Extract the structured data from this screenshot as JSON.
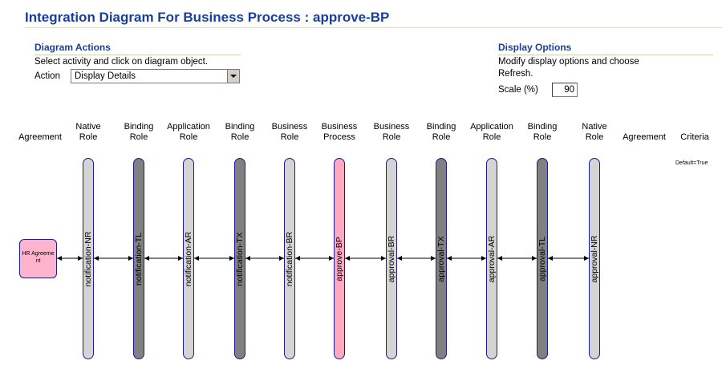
{
  "page": {
    "title": "Integration Diagram For Business Process : approve-BP"
  },
  "diagram_actions": {
    "heading": "Diagram Actions",
    "hint": "Select activity and click on diagram object.",
    "action_label": "Action",
    "action_value": "Display Details"
  },
  "display_options": {
    "heading": "Display Options",
    "hint_line1": "Modify display options and choose",
    "hint_line2": "Refresh.",
    "scale_label": "Scale (%)",
    "scale_value": "90"
  },
  "columns": [
    {
      "line1": "",
      "line2": "Agreement"
    },
    {
      "line1": "Native",
      "line2": "Role"
    },
    {
      "line1": "Binding",
      "line2": "Role"
    },
    {
      "line1": "Application",
      "line2": "Role"
    },
    {
      "line1": "Binding",
      "line2": "Role"
    },
    {
      "line1": "Business",
      "line2": "Role"
    },
    {
      "line1": "Business",
      "line2": "Process"
    },
    {
      "line1": "Business",
      "line2": "Role"
    },
    {
      "line1": "Binding",
      "line2": "Role"
    },
    {
      "line1": "Application",
      "line2": "Role"
    },
    {
      "line1": "Binding",
      "line2": "Role"
    },
    {
      "line1": "Native",
      "line2": "Role"
    },
    {
      "line1": "",
      "line2": "Agreement"
    },
    {
      "line1": "",
      "line2": "Criteria"
    }
  ],
  "agreement_node": {
    "line1": "HR Agreeme",
    "line2": "nt"
  },
  "criteria_value": "Default=True",
  "bars": [
    {
      "label": "notification-NR",
      "style": "light"
    },
    {
      "label": "notification-TL",
      "style": "dark"
    },
    {
      "label": "notification-AR",
      "style": "light"
    },
    {
      "label": "notification-TX",
      "style": "dark"
    },
    {
      "label": "notification-BR",
      "style": "light"
    },
    {
      "label": "approve-BP",
      "style": "pink"
    },
    {
      "label": "approval-BR",
      "style": "light"
    },
    {
      "label": "approval-TX",
      "style": "dark"
    },
    {
      "label": "approval-AR",
      "style": "light"
    },
    {
      "label": "approval-TL",
      "style": "dark"
    },
    {
      "label": "approval-NR",
      "style": "light"
    }
  ],
  "colors": {
    "title": "#1a3f9b",
    "bar_border": "#1a1a9a",
    "light_bar": "#d4d4d4",
    "dark_bar": "#808080",
    "process_bar": "#ffa8c2",
    "agreement_box": "#ffb3cc"
  }
}
